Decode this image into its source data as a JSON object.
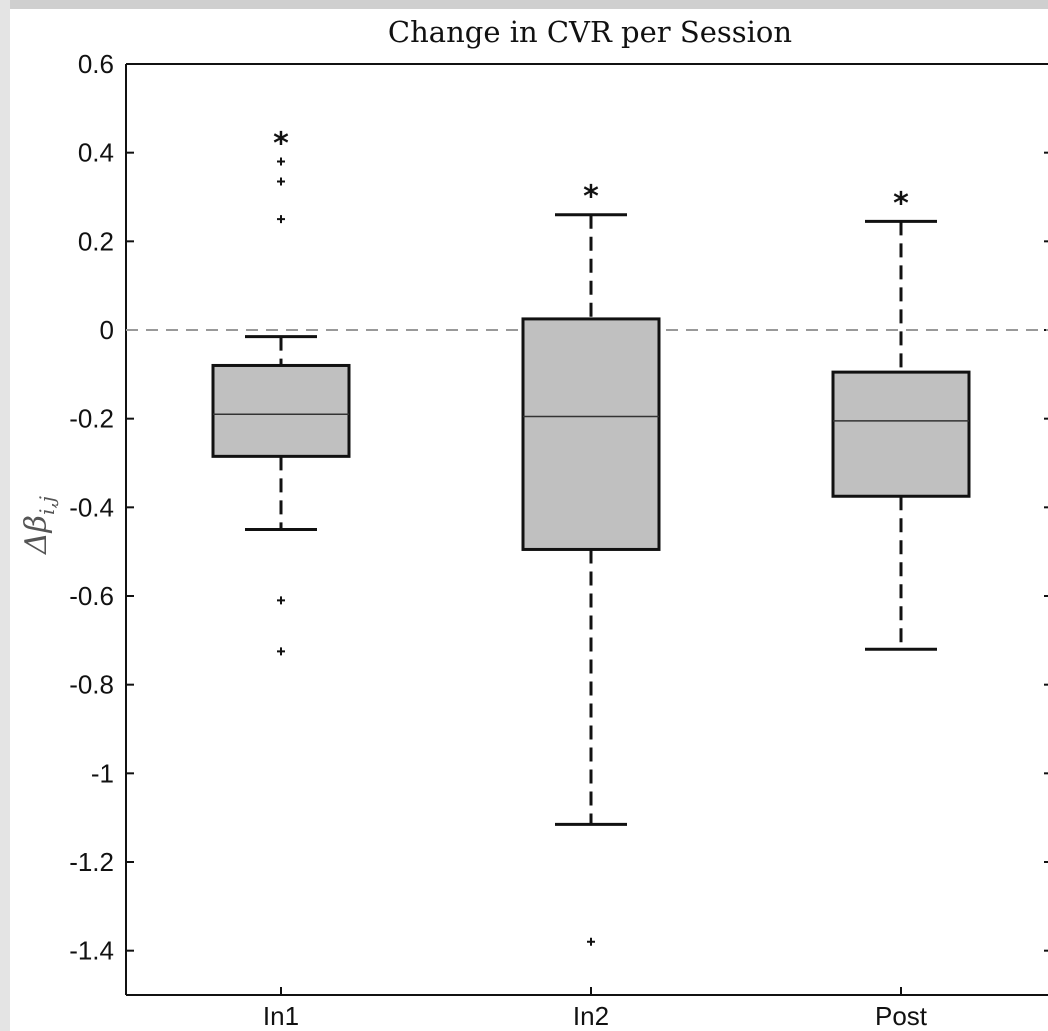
{
  "chart_data": {
    "type": "box",
    "title": "Change in CVR per Session",
    "ylabel": "Δβ",
    "ylabel_subscript": "i,j",
    "xlabel": "",
    "ylim": [
      -1.5,
      0.6
    ],
    "yticks": [
      0.6,
      0.4,
      0.2,
      0,
      -0.2,
      -0.4,
      -0.6,
      -0.8,
      -1,
      -1.2,
      -1.4
    ],
    "ytick_labels": [
      "0.6",
      "0.4",
      "0.2",
      "0",
      "-0.2",
      "-0.4",
      "-0.6",
      "-0.8",
      "-1",
      "-1.2",
      "-1.4"
    ],
    "reference_line": 0,
    "categories": [
      "In1",
      "In2",
      "Post"
    ],
    "boxes": [
      {
        "label": "In1",
        "whisker_low": -0.45,
        "q1": -0.285,
        "median": -0.19,
        "q3": -0.08,
        "whisker_high": -0.015,
        "outliers": [
          0.38,
          0.335,
          0.25,
          -0.61,
          -0.725
        ],
        "significance": "*"
      },
      {
        "label": "In2",
        "whisker_low": -1.115,
        "q1": -0.495,
        "median": -0.195,
        "q3": 0.025,
        "whisker_high": 0.26,
        "outliers": [
          -1.38
        ],
        "significance": "*"
      },
      {
        "label": "Post",
        "whisker_low": -0.72,
        "q1": -0.375,
        "median": -0.205,
        "q3": -0.095,
        "whisker_high": 0.245,
        "outliers": [],
        "significance": "*"
      }
    ],
    "box_fill": "#c0c0c0",
    "line_color": "#111111",
    "reference_line_color": "#999999",
    "grid": false
  }
}
